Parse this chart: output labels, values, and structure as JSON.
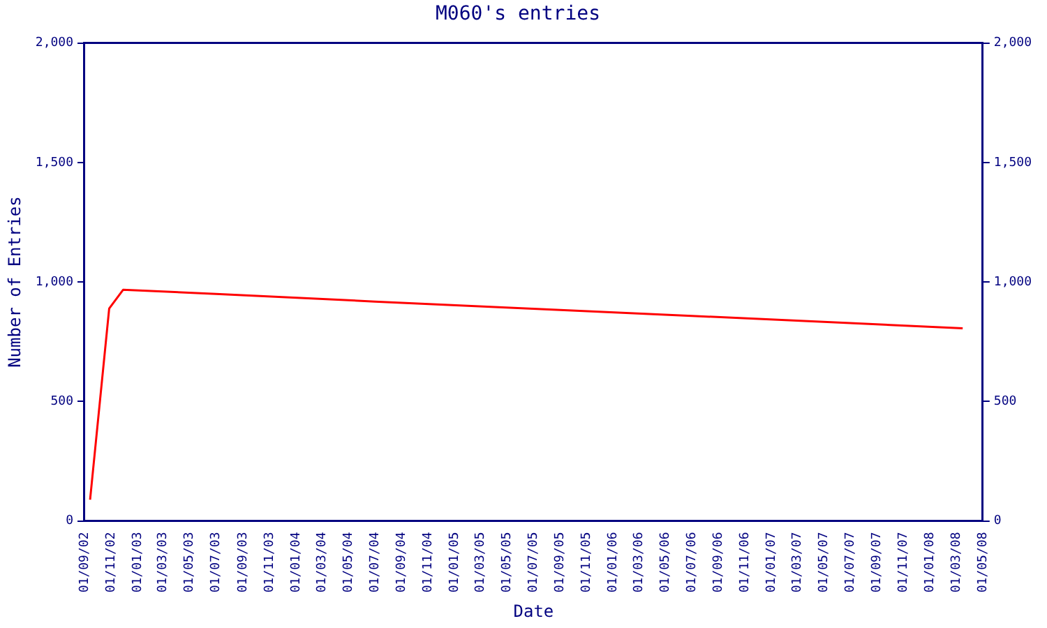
{
  "chart_data": {
    "type": "line",
    "title": "M060's entries",
    "xlabel": "Date",
    "ylabel": "Number of Entries",
    "x": [
      "2002-09-14",
      "2002-10-28",
      "2002-11-29",
      "2003-07-01",
      "2004-07-01",
      "2005-07-01",
      "2006-07-01",
      "2007-07-01",
      "2008-03-16"
    ],
    "series": [
      {
        "color": "#ff0000",
        "values": [
          89,
          889,
          967,
          950,
          918,
          888,
          858,
          828,
          806
        ]
      }
    ],
    "xlim": [
      "2002-09-01",
      "2008-05-01"
    ],
    "xticks": [
      {
        "value": "2002-09-01",
        "label": "01/09/02"
      },
      {
        "value": "2002-11-01",
        "label": "01/11/02"
      },
      {
        "value": "2003-01-01",
        "label": "01/01/03"
      },
      {
        "value": "2003-03-01",
        "label": "01/03/03"
      },
      {
        "value": "2003-05-01",
        "label": "01/05/03"
      },
      {
        "value": "2003-07-01",
        "label": "01/07/03"
      },
      {
        "value": "2003-09-01",
        "label": "01/09/03"
      },
      {
        "value": "2003-11-01",
        "label": "01/11/03"
      },
      {
        "value": "2004-01-01",
        "label": "01/01/04"
      },
      {
        "value": "2004-03-01",
        "label": "01/03/04"
      },
      {
        "value": "2004-05-01",
        "label": "01/05/04"
      },
      {
        "value": "2004-07-01",
        "label": "01/07/04"
      },
      {
        "value": "2004-09-01",
        "label": "01/09/04"
      },
      {
        "value": "2004-11-01",
        "label": "01/11/04"
      },
      {
        "value": "2005-01-01",
        "label": "01/01/05"
      },
      {
        "value": "2005-03-01",
        "label": "01/03/05"
      },
      {
        "value": "2005-05-01",
        "label": "01/05/05"
      },
      {
        "value": "2005-07-01",
        "label": "01/07/05"
      },
      {
        "value": "2005-09-01",
        "label": "01/09/05"
      },
      {
        "value": "2005-11-01",
        "label": "01/11/05"
      },
      {
        "value": "2006-01-01",
        "label": "01/01/06"
      },
      {
        "value": "2006-03-01",
        "label": "01/03/06"
      },
      {
        "value": "2006-05-01",
        "label": "01/05/06"
      },
      {
        "value": "2006-07-01",
        "label": "01/07/06"
      },
      {
        "value": "2006-09-01",
        "label": "01/09/06"
      },
      {
        "value": "2006-11-01",
        "label": "01/11/06"
      },
      {
        "value": "2007-01-01",
        "label": "01/01/07"
      },
      {
        "value": "2007-03-01",
        "label": "01/03/07"
      },
      {
        "value": "2007-05-01",
        "label": "01/05/07"
      },
      {
        "value": "2007-07-01",
        "label": "01/07/07"
      },
      {
        "value": "2007-09-01",
        "label": "01/09/07"
      },
      {
        "value": "2007-11-01",
        "label": "01/11/07"
      },
      {
        "value": "2008-01-01",
        "label": "01/01/08"
      },
      {
        "value": "2008-03-01",
        "label": "01/03/08"
      },
      {
        "value": "2008-05-01",
        "label": "01/05/08"
      }
    ],
    "ylim": [
      0,
      2000
    ],
    "yticks": [
      0,
      500,
      {
        "value": 1000,
        "label": "1,000"
      },
      {
        "value": 1500,
        "label": "1,500"
      },
      {
        "value": 2000,
        "label": "2,000"
      }
    ],
    "y2lim": [
      0,
      2000
    ],
    "y2ticks": [
      0,
      500,
      {
        "value": 1000,
        "label": "1,000"
      },
      {
        "value": 1500,
        "label": "1,500"
      },
      {
        "value": 2000,
        "label": "2,000"
      }
    ],
    "grid": false,
    "legend": false,
    "marker": "none",
    "line_style": "solid"
  }
}
